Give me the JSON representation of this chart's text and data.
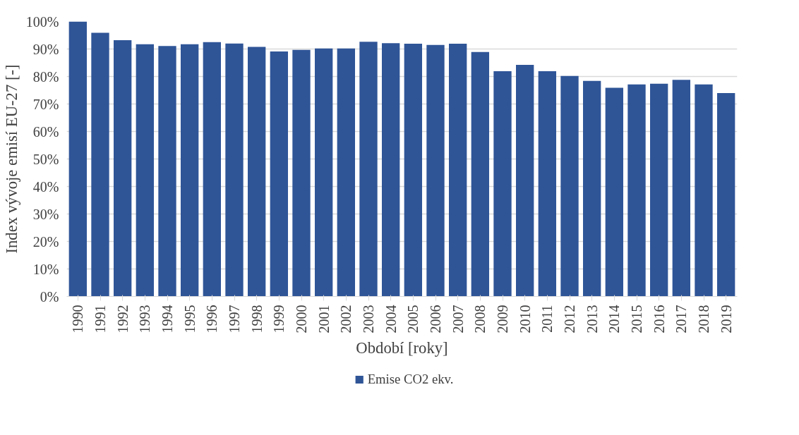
{
  "chart_data": {
    "type": "bar",
    "xlabel": "Období [roky]",
    "ylabel": "Index vývoje emisí EU-27 [-]",
    "categories": [
      "1990",
      "1991",
      "1992",
      "1993",
      "1994",
      "1995",
      "1996",
      "1997",
      "1998",
      "1999",
      "2000",
      "2001",
      "2002",
      "2003",
      "2004",
      "2005",
      "2006",
      "2007",
      "2008",
      "2009",
      "2010",
      "2011",
      "2012",
      "2013",
      "2014",
      "2015",
      "2016",
      "2017",
      "2018",
      "2019"
    ],
    "series": [
      {
        "name": "Emise CO2 ekv.",
        "color": "#2f5597",
        "values": [
          100,
          95.9,
          93.2,
          91.7,
          91.1,
          91.7,
          92.5,
          92.0,
          90.8,
          89.1,
          89.7,
          90.2,
          90.2,
          92.6,
          92.1,
          91.9,
          91.5,
          91.9,
          88.9,
          81.9,
          84.2,
          81.9,
          80.2,
          78.4,
          75.9,
          77.1,
          77.4,
          78.8,
          77.1,
          74.0
        ]
      }
    ],
    "ylim": [
      0,
      100
    ],
    "yticks": [
      {
        "value": 0,
        "label": "0%"
      },
      {
        "value": 10,
        "label": "10%"
      },
      {
        "value": 20,
        "label": "20%"
      },
      {
        "value": 30,
        "label": "30%"
      },
      {
        "value": 40,
        "label": "40%"
      },
      {
        "value": 50,
        "label": "50%"
      },
      {
        "value": 60,
        "label": "60%"
      },
      {
        "value": 70,
        "label": "70%"
      },
      {
        "value": 80,
        "label": "80%"
      },
      {
        "value": 90,
        "label": "90%"
      },
      {
        "value": 100,
        "label": "100%"
      }
    ],
    "grid": "y",
    "legend": "bottom"
  }
}
